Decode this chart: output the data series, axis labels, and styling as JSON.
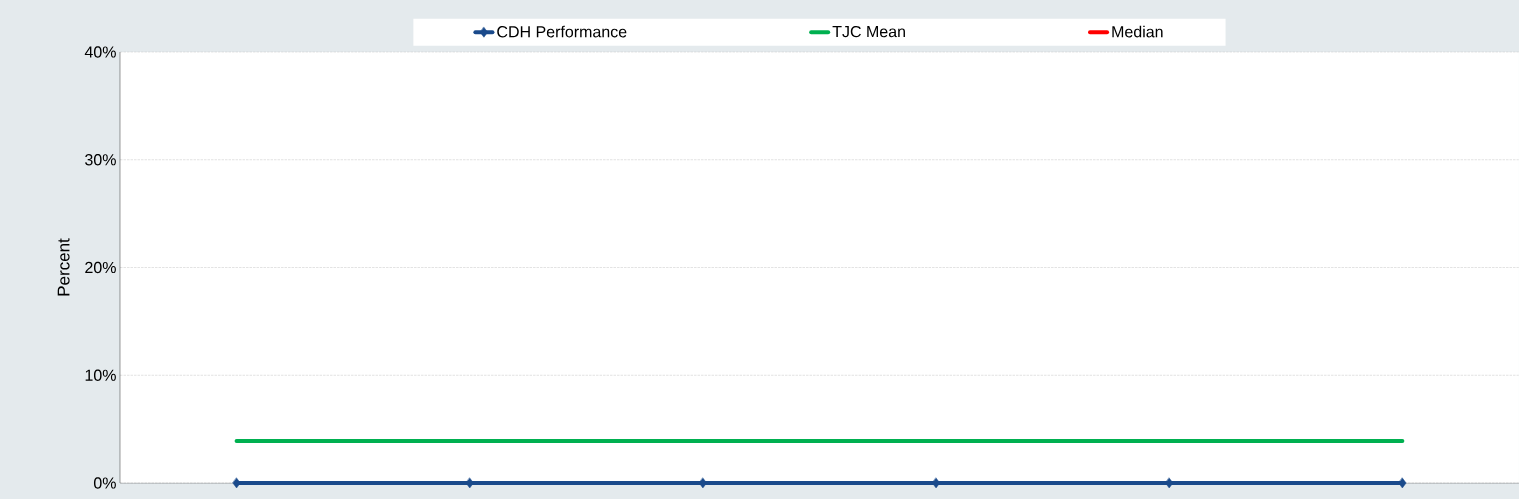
{
  "chart_data": {
    "type": "line",
    "ylabel": "Percent",
    "categories": [
      null,
      null,
      null,
      null,
      null,
      null
    ],
    "series": [
      {
        "name": "CDH Performance",
        "color": "#1a4a8b",
        "marker": "diamond",
        "values": [
          0,
          0,
          0,
          0,
          0,
          0
        ]
      },
      {
        "name": "TJC Mean",
        "color": "#00b050",
        "marker": "none",
        "values": [
          3.9,
          3.9,
          3.9,
          3.9,
          3.9,
          3.9
        ]
      },
      {
        "name": "Median",
        "color": "#ff0000",
        "marker": "none",
        "values": [
          null,
          null,
          null,
          null,
          null,
          null
        ]
      }
    ],
    "ylim": [
      0,
      40
    ],
    "yticks": [
      {
        "value": 0,
        "label": "0%"
      },
      {
        "value": 10,
        "label": "10%"
      },
      {
        "value": 20,
        "label": "20%"
      },
      {
        "value": 30,
        "label": "30%"
      },
      {
        "value": 40,
        "label": "40%"
      }
    ],
    "grid": "y",
    "legend": "top",
    "tick_labels": "y"
  }
}
